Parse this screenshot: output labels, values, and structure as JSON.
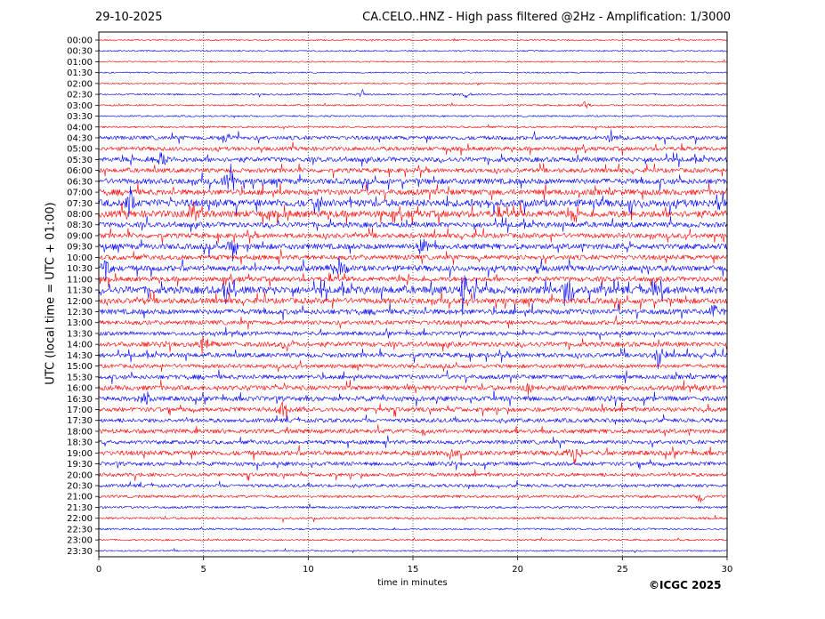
{
  "header": {
    "date": "29-10-2025",
    "title": "CA.CELO..HNZ - High pass filtered @2Hz - Amplification: 1/3000"
  },
  "footer": {
    "copyright": "©ICGC 2025"
  },
  "colors": {
    "trace_a": "#ff0000",
    "trace_b": "#0000ff",
    "grid": "#000000",
    "axis": "#000000",
    "background": "#ffffff"
  },
  "chart_data": {
    "type": "line",
    "title": "CA.CELO..HNZ - High pass filtered @2Hz - Amplification: 1/3000",
    "xlabel": "time in minutes",
    "ylabel": "UTC (local time = UTC + 01:00)",
    "xlim": [
      0,
      30
    ],
    "xticks": [
      0,
      5,
      10,
      15,
      20,
      25,
      30
    ],
    "grid": "vertical dotted lines at each x tick",
    "trace_color_order": [
      "red",
      "blue"
    ],
    "row_labels": [
      "00:00",
      "00:30",
      "01:00",
      "01:30",
      "02:00",
      "02:30",
      "03:00",
      "03:30",
      "04:00",
      "04:30",
      "05:00",
      "05:30",
      "06:00",
      "06:30",
      "07:00",
      "07:30",
      "08:00",
      "08:30",
      "09:00",
      "09:30",
      "10:00",
      "10:30",
      "11:00",
      "11:30",
      "12:00",
      "12:30",
      "13:00",
      "13:30",
      "14:00",
      "14:30",
      "15:00",
      "15:30",
      "16:00",
      "16:30",
      "17:00",
      "17:30",
      "18:00",
      "18:30",
      "19:00",
      "19:30",
      "20:00",
      "20:30",
      "21:00",
      "21:30",
      "22:00",
      "22:30",
      "23:00",
      "23:30"
    ],
    "row_activity": [
      0.05,
      0.05,
      0.04,
      0.04,
      0.06,
      0.08,
      0.07,
      0.07,
      0.1,
      0.35,
      0.35,
      0.45,
      0.4,
      0.55,
      0.55,
      0.75,
      0.7,
      0.5,
      0.45,
      0.55,
      0.45,
      0.55,
      0.45,
      0.75,
      0.55,
      0.5,
      0.4,
      0.35,
      0.45,
      0.4,
      0.35,
      0.4,
      0.45,
      0.45,
      0.4,
      0.35,
      0.4,
      0.35,
      0.45,
      0.35,
      0.3,
      0.25,
      0.2,
      0.15,
      0.15,
      0.1,
      0.08,
      0.05
    ],
    "events": [
      {
        "row": "02:30",
        "minute": 12.6,
        "amp": 0.4
      },
      {
        "row": "02:30",
        "minute": 17.5,
        "amp": 0.3
      },
      {
        "row": "03:00",
        "minute": 23.2,
        "amp": 0.3
      },
      {
        "row": "04:30",
        "minute": 6.1,
        "amp": 0.6
      },
      {
        "row": "04:30",
        "minute": 24.5,
        "amp": 0.8
      },
      {
        "row": "05:30",
        "minute": 3.0,
        "amp": 0.8
      },
      {
        "row": "06:30",
        "minute": 6.3,
        "amp": 1.6
      },
      {
        "row": "07:30",
        "minute": 1.5,
        "amp": 1.2
      },
      {
        "row": "07:30",
        "minute": 10.5,
        "amp": 0.8
      },
      {
        "row": "08:00",
        "minute": 4.5,
        "amp": 1.0
      },
      {
        "row": "09:30",
        "minute": 6.4,
        "amp": 1.0
      },
      {
        "row": "09:30",
        "minute": 15.4,
        "amp": 1.0
      },
      {
        "row": "10:30",
        "minute": 0.3,
        "amp": 1.2
      },
      {
        "row": "10:30",
        "minute": 11.5,
        "amp": 1.2
      },
      {
        "row": "11:30",
        "minute": 6.0,
        "amp": 1.0
      },
      {
        "row": "11:30",
        "minute": 17.4,
        "amp": 2.2
      },
      {
        "row": "11:30",
        "minute": 22.5,
        "amp": 1.4
      },
      {
        "row": "11:30",
        "minute": 26.5,
        "amp": 0.9
      },
      {
        "row": "12:30",
        "minute": 29.4,
        "amp": 0.9
      },
      {
        "row": "14:00",
        "minute": 5.0,
        "amp": 0.9
      },
      {
        "row": "14:00",
        "minute": 9.0,
        "amp": 0.8
      },
      {
        "row": "14:30",
        "minute": 26.7,
        "amp": 1.2
      },
      {
        "row": "16:00",
        "minute": 20.5,
        "amp": 0.7
      },
      {
        "row": "16:30",
        "minute": 2.3,
        "amp": 0.9
      },
      {
        "row": "17:00",
        "minute": 8.8,
        "amp": 0.8
      },
      {
        "row": "19:00",
        "minute": 22.7,
        "amp": 1.0
      },
      {
        "row": "19:00",
        "minute": 16.8,
        "amp": 0.7
      },
      {
        "row": "21:00",
        "minute": 28.7,
        "amp": 0.5
      }
    ]
  }
}
